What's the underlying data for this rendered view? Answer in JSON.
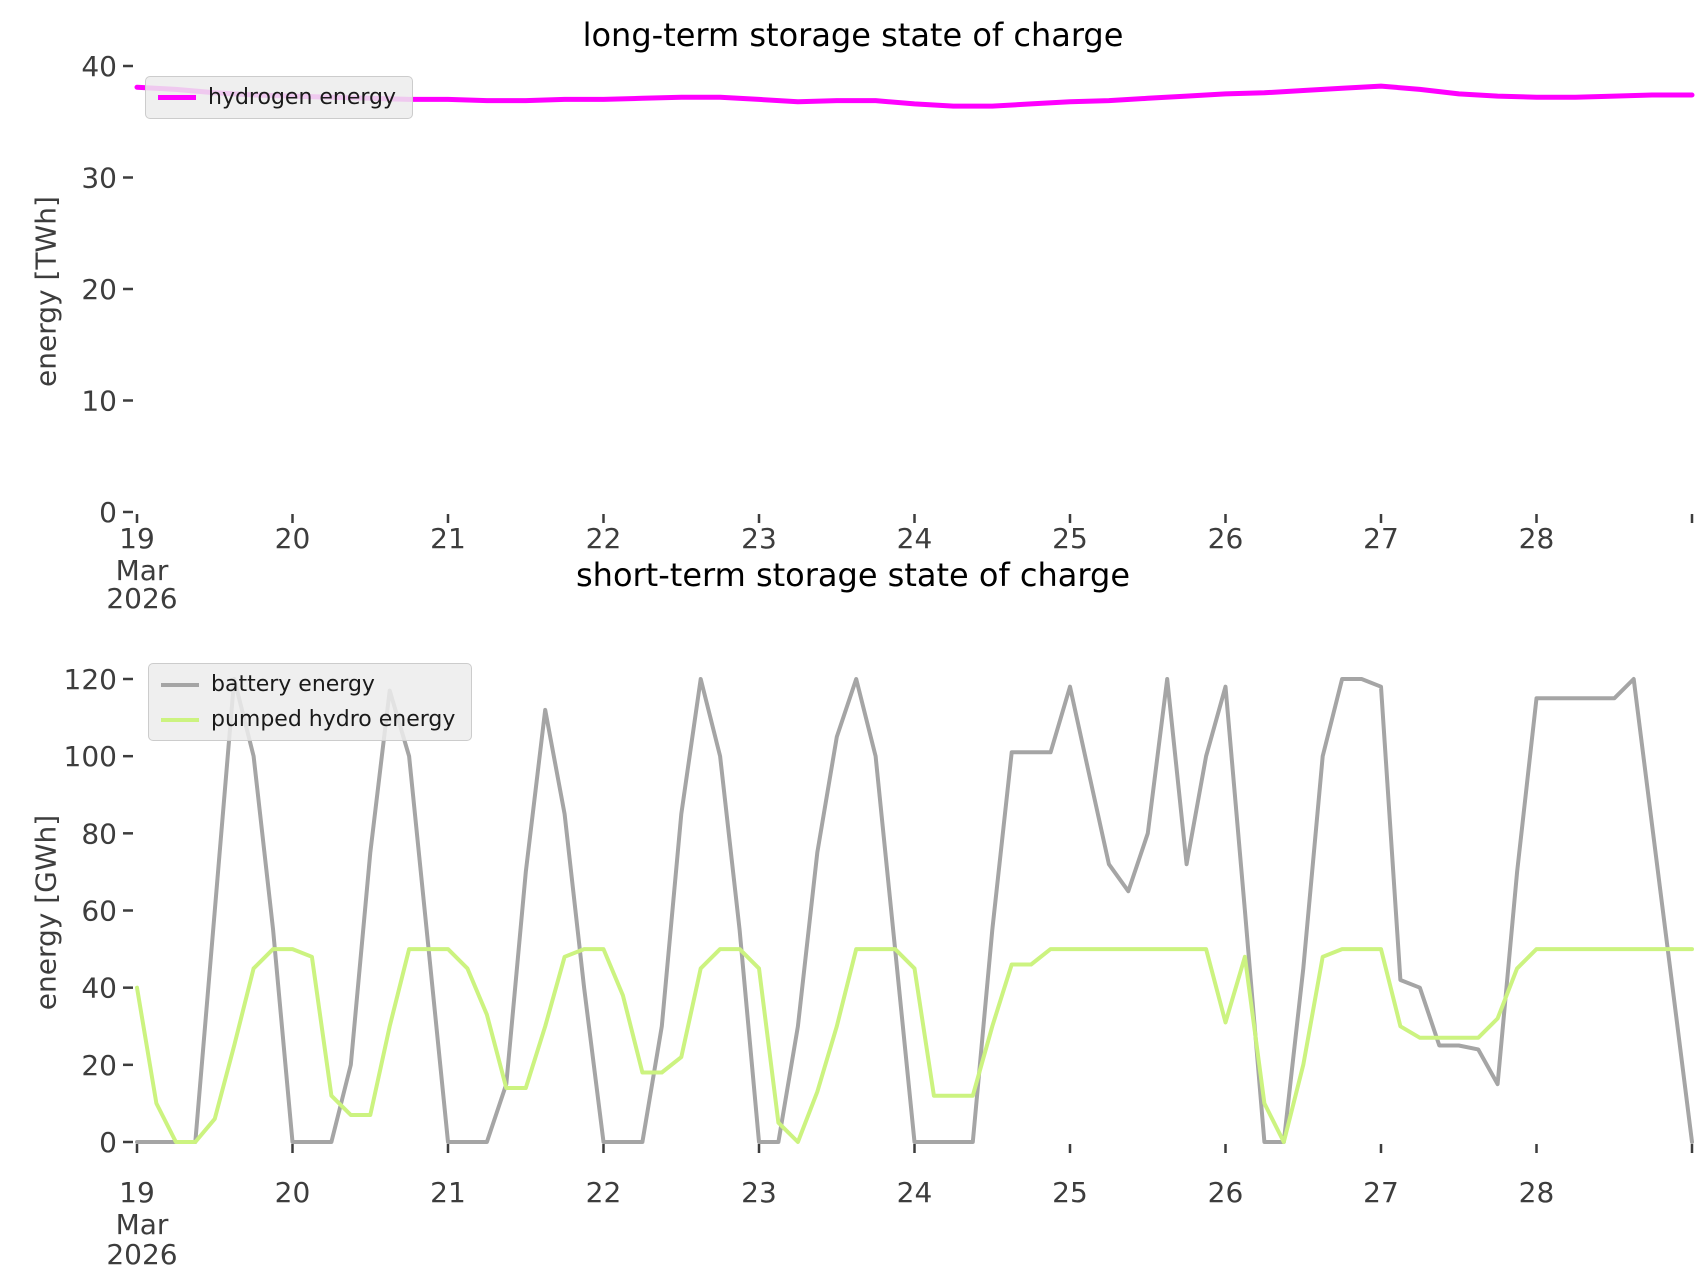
{
  "figure": {
    "background": "#ffffff",
    "tick_color": "#3d3d3d",
    "title_color": "#000000",
    "legend_background": "#ececec",
    "legend_border": "#cccccc"
  },
  "chart_data": [
    {
      "type": "line",
      "title": "long-term storage state of charge",
      "ylabel": "energy [TWh]",
      "xlabel": "",
      "xlim": [
        19,
        29
      ],
      "ylim": [
        0,
        40
      ],
      "yticks": [
        0,
        10,
        20,
        30,
        40
      ],
      "xticks": [
        {
          "v": 19,
          "label": "19",
          "sub": [
            "Mar",
            "2026"
          ]
        },
        {
          "v": 20,
          "label": "20"
        },
        {
          "v": 21,
          "label": "21"
        },
        {
          "v": 22,
          "label": "22"
        },
        {
          "v": 23,
          "label": "23"
        },
        {
          "v": 24,
          "label": "24"
        },
        {
          "v": 25,
          "label": "25"
        },
        {
          "v": 26,
          "label": "26"
        },
        {
          "v": 27,
          "label": "27"
        },
        {
          "v": 28,
          "label": "28"
        },
        {
          "v": 29,
          "label": ""
        }
      ],
      "grid": false,
      "legend_position": "upper-left",
      "x": [
        19.0,
        19.25,
        19.5,
        19.75,
        20.0,
        20.25,
        20.5,
        20.75,
        21.0,
        21.25,
        21.5,
        21.75,
        22.0,
        22.25,
        22.5,
        22.75,
        23.0,
        23.25,
        23.5,
        23.75,
        24.0,
        24.25,
        24.5,
        24.75,
        25.0,
        25.25,
        25.5,
        25.75,
        26.0,
        26.25,
        26.5,
        26.75,
        27.0,
        27.25,
        27.5,
        27.75,
        28.0,
        28.25,
        28.5,
        28.75,
        29.0
      ],
      "series": [
        {
          "name": "hydrogen energy",
          "color": "#ff00ff",
          "line_width": 5,
          "values": [
            38.1,
            37.9,
            37.6,
            37.4,
            37.3,
            37.2,
            37.1,
            37.0,
            37.0,
            36.9,
            36.9,
            37.0,
            37.0,
            37.1,
            37.2,
            37.2,
            37.0,
            36.8,
            36.9,
            36.9,
            36.6,
            36.4,
            36.4,
            36.6,
            36.8,
            36.9,
            37.1,
            37.3,
            37.5,
            37.6,
            37.8,
            38.0,
            38.2,
            37.9,
            37.5,
            37.3,
            37.2,
            37.2,
            37.3,
            37.4,
            37.4
          ]
        }
      ]
    },
    {
      "type": "line",
      "title": "short-term storage state of charge",
      "ylabel": "energy [GWh]",
      "xlabel": "",
      "xlim": [
        19,
        29
      ],
      "ylim": [
        0,
        120
      ],
      "yticks": [
        0,
        20,
        40,
        60,
        80,
        100,
        120
      ],
      "xticks": [
        {
          "v": 19,
          "label": "19",
          "sub": [
            "Mar",
            "2026"
          ]
        },
        {
          "v": 20,
          "label": "20"
        },
        {
          "v": 21,
          "label": "21"
        },
        {
          "v": 22,
          "label": "22"
        },
        {
          "v": 23,
          "label": "23"
        },
        {
          "v": 24,
          "label": "24"
        },
        {
          "v": 25,
          "label": "25"
        },
        {
          "v": 26,
          "label": "26"
        },
        {
          "v": 27,
          "label": "27"
        },
        {
          "v": 28,
          "label": "28"
        },
        {
          "v": 29,
          "label": ""
        }
      ],
      "grid": false,
      "legend_position": "upper-left",
      "x": [
        19.0,
        19.125,
        19.25,
        19.375,
        19.5,
        19.625,
        19.75,
        19.875,
        20.0,
        20.125,
        20.25,
        20.375,
        20.5,
        20.625,
        20.75,
        20.875,
        21.0,
        21.125,
        21.25,
        21.375,
        21.5,
        21.625,
        21.75,
        21.875,
        22.0,
        22.125,
        22.25,
        22.375,
        22.5,
        22.625,
        22.75,
        22.875,
        23.0,
        23.125,
        23.25,
        23.375,
        23.5,
        23.625,
        23.75,
        23.875,
        24.0,
        24.125,
        24.25,
        24.375,
        24.5,
        24.625,
        24.75,
        24.875,
        25.0,
        25.125,
        25.25,
        25.375,
        25.5,
        25.625,
        25.75,
        25.875,
        26.0,
        26.125,
        26.25,
        26.375,
        26.5,
        26.625,
        26.75,
        26.875,
        27.0,
        27.125,
        27.25,
        27.375,
        27.5,
        27.625,
        27.75,
        27.875,
        28.0,
        28.125,
        28.25,
        28.375,
        28.5,
        28.625,
        28.75,
        28.875,
        29.0
      ],
      "series": [
        {
          "name": "battery energy",
          "color": "#a5a5a5",
          "line_width": 4,
          "values": [
            0,
            0,
            0,
            0,
            60,
            120,
            100,
            55,
            0,
            0,
            0,
            20,
            75,
            117,
            100,
            50,
            0,
            0,
            0,
            15,
            70,
            112,
            85,
            40,
            0,
            0,
            0,
            30,
            85,
            120,
            100,
            55,
            0,
            0,
            30,
            75,
            105,
            120,
            100,
            50,
            0,
            0,
            0,
            0,
            55,
            101,
            101,
            101,
            118,
            95,
            72,
            65,
            80,
            120,
            72,
            100,
            118,
            60,
            0,
            0,
            45,
            100,
            120,
            120,
            118,
            42,
            40,
            25,
            25,
            24,
            15,
            70,
            115,
            115,
            115,
            115,
            115,
            120,
            80,
            40,
            0
          ]
        },
        {
          "name": "pumped hydro energy",
          "color": "#ccf380",
          "line_width": 4,
          "values": [
            40,
            10,
            0,
            0,
            6,
            25,
            45,
            50,
            50,
            48,
            12,
            7,
            7,
            30,
            50,
            50,
            50,
            45,
            33,
            14,
            14,
            30,
            48,
            50,
            50,
            38,
            18,
            18,
            22,
            45,
            50,
            50,
            45,
            5,
            0,
            13,
            30,
            50,
            50,
            50,
            45,
            12,
            12,
            12,
            30,
            46,
            46,
            50,
            50,
            50,
            50,
            50,
            50,
            50,
            50,
            50,
            31,
            48,
            10,
            0,
            20,
            48,
            50,
            50,
            50,
            30,
            27,
            27,
            27,
            27,
            32,
            45,
            50,
            50,
            50,
            50,
            50,
            50,
            50,
            50,
            50
          ]
        }
      ]
    }
  ]
}
